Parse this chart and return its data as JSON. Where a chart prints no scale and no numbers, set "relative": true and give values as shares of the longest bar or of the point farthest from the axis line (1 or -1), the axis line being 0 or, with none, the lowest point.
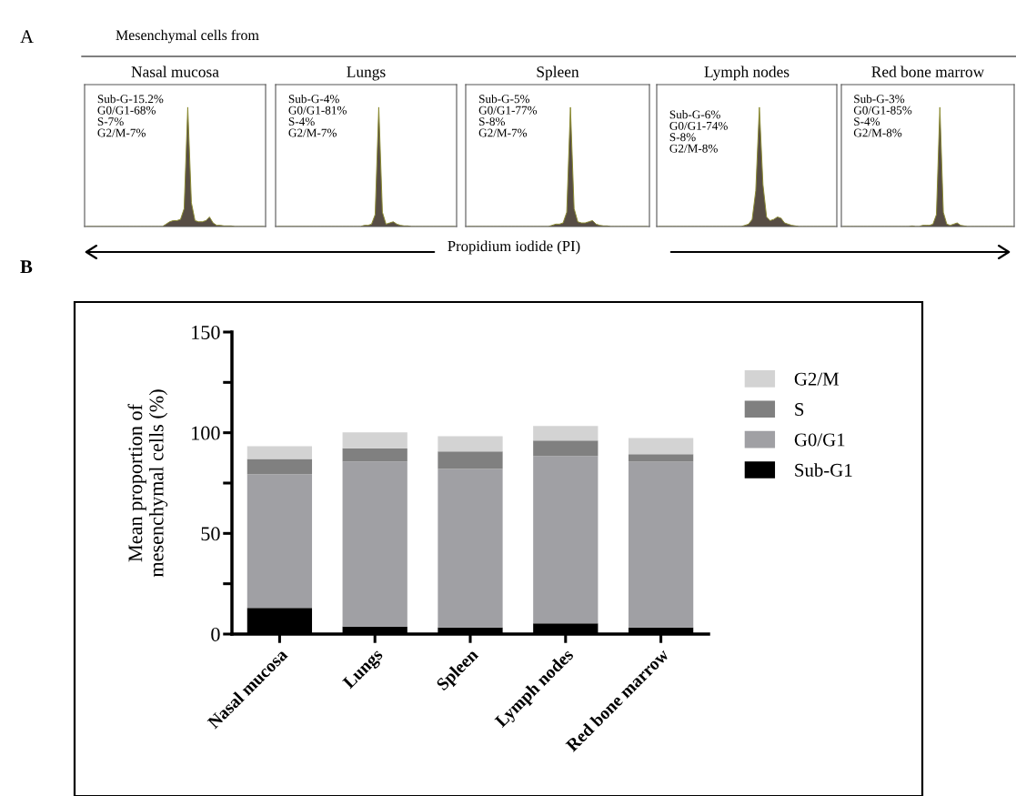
{
  "chart_data": [
    {
      "type": "area",
      "relative": true,
      "title": "Nasal mucosa",
      "color": "#574d44",
      "categories": [
        null,
        null,
        null,
        null,
        null,
        null,
        null,
        null,
        null,
        null,
        null,
        null,
        null,
        null,
        null,
        null,
        null,
        null,
        null,
        null,
        null,
        null,
        null,
        null,
        null,
        null,
        null,
        null,
        null,
        null,
        null,
        null,
        null,
        null,
        null,
        null,
        null,
        null,
        null,
        null,
        null,
        null,
        null,
        null,
        null,
        null,
        null,
        null,
        null,
        null
      ],
      "values": [
        0,
        0,
        0,
        0,
        0,
        0,
        0,
        0,
        0,
        0,
        0,
        0,
        0,
        0,
        0,
        0,
        0,
        0,
        0,
        0,
        0,
        0,
        0.02,
        0.04,
        0.05,
        0.05,
        0.06,
        0.15,
        1,
        0.2,
        0.05,
        0.04,
        0.04,
        0.05,
        0.08,
        0.03,
        0.01,
        0.01,
        0.005,
        0.005,
        0.005,
        0,
        0,
        0,
        0,
        0,
        0,
        0,
        0,
        0
      ],
      "annotations": [
        "A",
        "Mesenchymal cells from",
        "Propidium iodide (PI)",
        "Sub-G-15.2%",
        "G0/G1-68%",
        "S-7%",
        "G2/M-7%"
      ]
    },
    {
      "type": "area",
      "relative": true,
      "title": "Lungs",
      "color": "#574d44",
      "categories": [
        null,
        null,
        null,
        null,
        null,
        null,
        null,
        null,
        null,
        null,
        null,
        null,
        null,
        null,
        null,
        null,
        null,
        null,
        null,
        null,
        null,
        null,
        null,
        null,
        null,
        null,
        null,
        null,
        null,
        null,
        null,
        null,
        null,
        null,
        null,
        null,
        null,
        null,
        null,
        null,
        null,
        null,
        null,
        null,
        null,
        null,
        null,
        null,
        null,
        null
      ],
      "values": [
        0,
        0,
        0,
        0,
        0,
        0,
        0,
        0,
        0,
        0,
        0,
        0,
        0,
        0,
        0,
        0,
        0,
        0,
        0,
        0,
        0,
        0,
        0,
        0,
        0.01,
        0.01,
        0.02,
        0.1,
        1,
        0.12,
        0.02,
        0.03,
        0.04,
        0.02,
        0.01,
        0.005,
        0.005,
        0,
        0,
        0,
        0,
        0,
        0,
        0,
        0,
        0,
        0,
        0,
        0,
        0
      ],
      "annotations": [
        "Sub-G-4%",
        "G0/G1-81%",
        "S-4%",
        "G2/M-7%"
      ]
    },
    {
      "type": "area",
      "relative": true,
      "title": "Spleen",
      "color": "#574d44",
      "categories": [
        null,
        null,
        null,
        null,
        null,
        null,
        null,
        null,
        null,
        null,
        null,
        null,
        null,
        null,
        null,
        null,
        null,
        null,
        null,
        null,
        null,
        null,
        null,
        null,
        null,
        null,
        null,
        null,
        null,
        null,
        null,
        null,
        null,
        null,
        null,
        null,
        null,
        null,
        null,
        null,
        null,
        null,
        null,
        null,
        null,
        null,
        null,
        null,
        null,
        null
      ],
      "values": [
        0,
        0,
        0,
        0,
        0,
        0,
        0,
        0,
        0,
        0,
        0,
        0,
        0,
        0,
        0,
        0,
        0,
        0,
        0,
        0,
        0,
        0,
        0,
        0.01,
        0.02,
        0.02,
        0.03,
        0.12,
        1,
        0.15,
        0.04,
        0.03,
        0.03,
        0.04,
        0.05,
        0.02,
        0.01,
        0.005,
        0.005,
        0,
        0,
        0,
        0,
        0,
        0,
        0,
        0,
        0,
        0,
        0
      ],
      "annotations": [
        "Sub-G-5%",
        "G0/G1-77%",
        "S-8%",
        "G2/M-7%"
      ]
    },
    {
      "type": "area",
      "relative": true,
      "title": "Lymph nodes",
      "color": "#574d44",
      "categories": [
        null,
        null,
        null,
        null,
        null,
        null,
        null,
        null,
        null,
        null,
        null,
        null,
        null,
        null,
        null,
        null,
        null,
        null,
        null,
        null,
        null,
        null,
        null,
        null,
        null,
        null,
        null,
        null,
        null,
        null,
        null,
        null,
        null,
        null,
        null,
        null,
        null,
        null,
        null,
        null,
        null,
        null,
        null,
        null,
        null,
        null,
        null,
        null,
        null,
        null
      ],
      "values": [
        0,
        0,
        0,
        0,
        0,
        0,
        0,
        0,
        0,
        0,
        0,
        0,
        0,
        0,
        0,
        0,
        0,
        0,
        0,
        0,
        0,
        0,
        0,
        0,
        0.01,
        0.02,
        0.06,
        0.3,
        1,
        0.35,
        0.08,
        0.05,
        0.06,
        0.08,
        0.07,
        0.03,
        0.02,
        0.01,
        0.005,
        0,
        0,
        0,
        0,
        0,
        0,
        0,
        0,
        0,
        0,
        0
      ],
      "annotations": [
        "Sub-G-6%",
        "G0/G1-74%",
        "S-8%",
        "G2/M-8%"
      ]
    },
    {
      "type": "area",
      "relative": true,
      "title": "Red bone marrow",
      "color": "#574d44",
      "categories": [
        null,
        null,
        null,
        null,
        null,
        null,
        null,
        null,
        null,
        null,
        null,
        null,
        null,
        null,
        null,
        null,
        null,
        null,
        null,
        null,
        null,
        null,
        null,
        null,
        null,
        null,
        null,
        null,
        null,
        null,
        null,
        null,
        null,
        null,
        null,
        null,
        null,
        null,
        null,
        null,
        null,
        null,
        null,
        null,
        null,
        null,
        null,
        null,
        null,
        null
      ],
      "values": [
        0,
        0,
        0,
        0,
        0,
        0,
        0,
        0,
        0,
        0,
        0,
        0,
        0,
        0,
        0,
        0,
        0,
        0,
        0,
        0,
        0.005,
        0,
        0,
        0.01,
        0.01,
        0.01,
        0.02,
        0.1,
        1,
        0.12,
        0.02,
        0.01,
        0.02,
        0.03,
        0.01,
        0.005,
        0,
        0,
        0,
        0,
        0,
        0,
        0,
        0,
        0,
        0,
        0,
        0,
        0,
        0
      ],
      "annotations": [
        "Sub-G-3%",
        "G0/G1-85%",
        "S-4%",
        "G2/M-8%"
      ]
    },
    {
      "type": "bar",
      "stacked": true,
      "categories": [
        "Nasal mucosa",
        "Lungs",
        "Spleen",
        "Lymph nodes",
        "Red bone marrow"
      ],
      "ylabel": "Mean proportion of\nmesenchymal cells (%)",
      "ylim": [
        0,
        150
      ],
      "yticks": [
        0,
        {
          "value": 25,
          "label": null
        },
        50,
        {
          "value": 75,
          "label": null
        },
        100,
        {
          "value": 125,
          "label": null
        },
        150
      ],
      "grid": false,
      "legend": "right",
      "series": [
        {
          "name": "Sub-G1",
          "color": "#000000",
          "values": [
            13,
            3.7,
            3.3,
            5.3,
            3.3
          ]
        },
        {
          "name": "G0/G1",
          "color": "#a0a0a4",
          "values": [
            66.4,
            82,
            78.8,
            83.1,
            82.3
          ]
        },
        {
          "name": "S",
          "color": "#808080",
          "values": [
            7.6,
            6.6,
            8.6,
            7.7,
            3.7
          ]
        },
        {
          "name": "G2/M",
          "color": "#d3d3d3",
          "values": [
            6.3,
            7.9,
            7.6,
            7.3,
            8.1
          ]
        }
      ],
      "annotations": [
        "B"
      ]
    }
  ]
}
